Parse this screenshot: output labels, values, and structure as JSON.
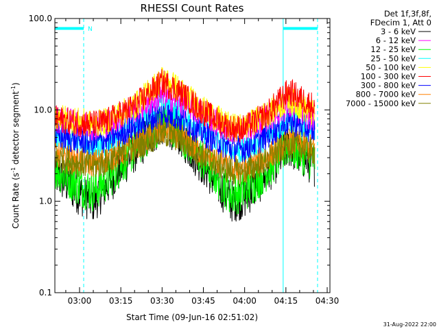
{
  "chart_data": {
    "type": "line",
    "title": "RHESSI Count Rates",
    "xlabel": "Start Time (09-Jun-16 02:51:02)",
    "ylabel_main": "Count Rate (s",
    "ylabel_exp1": "-1",
    "ylabel_mid": " detector segment",
    "ylabel_exp2": "-1",
    "ylabel_end": ")",
    "y_scale": "log",
    "ylim": [
      0.1,
      100.0
    ],
    "yticks": [
      {
        "value": 0.1,
        "label": "0.1"
      },
      {
        "value": 1.0,
        "label": "1.0"
      },
      {
        "value": 10.0,
        "label": "10.0"
      },
      {
        "value": 100.0,
        "label": "100.0"
      }
    ],
    "xlim": [
      "02:51:02",
      "04:31:00"
    ],
    "xticks": [
      {
        "time": "03:00",
        "label": "03:00"
      },
      {
        "time": "03:15",
        "label": "03:15"
      },
      {
        "time": "03:30",
        "label": "03:30"
      },
      {
        "time": "03:45",
        "label": "03:45"
      },
      {
        "time": "04:00",
        "label": "04:00"
      },
      {
        "time": "04:15",
        "label": "04:15"
      },
      {
        "time": "04:30",
        "label": "04:30"
      }
    ],
    "legend_header": [
      "Det 1f,3f,8f,",
      "FDecim 1, Att 0"
    ],
    "legend_placement": "right",
    "series": [
      {
        "name": "3 - 6 keV",
        "color": "#000000",
        "values": [
          [
            "02:51",
            2.0
          ],
          [
            "03:00",
            1.2
          ],
          [
            "03:05",
            1.0
          ],
          [
            "03:10",
            1.5
          ],
          [
            "03:20",
            3.5
          ],
          [
            "03:30",
            7.0
          ],
          [
            "03:35",
            6.0
          ],
          [
            "03:45",
            2.5
          ],
          [
            "03:55",
            1.0
          ],
          [
            "04:00",
            1.1
          ],
          [
            "04:08",
            2.0
          ],
          [
            "04:16",
            4.0
          ],
          [
            "04:25",
            2.5
          ]
        ]
      },
      {
        "name": "6 - 12 keV",
        "color": "#ff00ff",
        "values": [
          [
            "02:51",
            8.0
          ],
          [
            "03:00",
            7.0
          ],
          [
            "03:05",
            6.5
          ],
          [
            "03:10",
            7.0
          ],
          [
            "03:20",
            10.0
          ],
          [
            "03:30",
            14.0
          ],
          [
            "03:35",
            13.0
          ],
          [
            "03:45",
            9.0
          ],
          [
            "03:55",
            6.0
          ],
          [
            "04:00",
            6.0
          ],
          [
            "04:08",
            8.0
          ],
          [
            "04:16",
            11.0
          ],
          [
            "04:25",
            8.0
          ]
        ]
      },
      {
        "name": "12 - 25 keV",
        "color": "#00ff00",
        "values": [
          [
            "02:51",
            2.3
          ],
          [
            "03:00",
            1.5
          ],
          [
            "03:05",
            1.3
          ],
          [
            "03:10",
            1.7
          ],
          [
            "03:20",
            3.8
          ],
          [
            "03:30",
            7.5
          ],
          [
            "03:35",
            6.5
          ],
          [
            "03:45",
            2.8
          ],
          [
            "03:55",
            1.2
          ],
          [
            "04:00",
            1.3
          ],
          [
            "04:08",
            2.2
          ],
          [
            "04:16",
            4.2
          ],
          [
            "04:25",
            2.8
          ]
        ]
      },
      {
        "name": "25 - 50 keV",
        "color": "#00ffff",
        "values": [
          [
            "02:51",
            5.0
          ],
          [
            "03:00",
            4.0
          ],
          [
            "03:05",
            3.8
          ],
          [
            "03:10",
            4.2
          ],
          [
            "03:20",
            7.0
          ],
          [
            "03:30",
            12.0
          ],
          [
            "03:35",
            10.0
          ],
          [
            "03:45",
            6.0
          ],
          [
            "03:55",
            3.5
          ],
          [
            "04:00",
            3.5
          ],
          [
            "04:08",
            5.0
          ],
          [
            "04:16",
            8.0
          ],
          [
            "04:25",
            6.0
          ]
        ]
      },
      {
        "name": "50 - 100 keV",
        "color": "#ffff00",
        "values": [
          [
            "02:51",
            8.5
          ],
          [
            "03:00",
            7.5
          ],
          [
            "03:05",
            7.0
          ],
          [
            "03:10",
            7.5
          ],
          [
            "03:20",
            11.0
          ],
          [
            "03:30",
            22.0
          ],
          [
            "03:35",
            18.0
          ],
          [
            "03:45",
            10.0
          ],
          [
            "03:55",
            6.5
          ],
          [
            "04:00",
            6.5
          ],
          [
            "04:08",
            9.0
          ],
          [
            "04:16",
            13.0
          ],
          [
            "04:25",
            9.0
          ]
        ]
      },
      {
        "name": "100 - 300 keV",
        "color": "#ff0000",
        "values": [
          [
            "02:51",
            8.0
          ],
          [
            "03:00",
            7.2
          ],
          [
            "03:05",
            7.0
          ],
          [
            "03:10",
            7.5
          ],
          [
            "03:20",
            11.0
          ],
          [
            "03:30",
            20.0
          ],
          [
            "03:35",
            17.0
          ],
          [
            "03:45",
            9.5
          ],
          [
            "03:55",
            6.3
          ],
          [
            "04:00",
            6.3
          ],
          [
            "04:08",
            9.0
          ],
          [
            "04:16",
            16.0
          ],
          [
            "04:25",
            11.0
          ]
        ]
      },
      {
        "name": "300 - 800 keV",
        "color": "#0000ff",
        "values": [
          [
            "02:51",
            5.2
          ],
          [
            "03:00",
            4.6
          ],
          [
            "03:05",
            4.4
          ],
          [
            "03:10",
            4.8
          ],
          [
            "03:20",
            6.5
          ],
          [
            "03:30",
            9.0
          ],
          [
            "03:35",
            8.5
          ],
          [
            "03:45",
            5.5
          ],
          [
            "03:55",
            3.8
          ],
          [
            "04:00",
            3.8
          ],
          [
            "04:08",
            5.2
          ],
          [
            "04:16",
            7.5
          ],
          [
            "04:25",
            6.0
          ]
        ]
      },
      {
        "name": "800 - 7000 keV",
        "color": "#ff8000",
        "values": [
          [
            "02:51",
            3.3
          ],
          [
            "03:00",
            2.8
          ],
          [
            "03:05",
            2.6
          ],
          [
            "03:10",
            2.9
          ],
          [
            "03:20",
            4.0
          ],
          [
            "03:30",
            6.0
          ],
          [
            "03:35",
            5.5
          ],
          [
            "03:45",
            3.3
          ],
          [
            "03:55",
            2.3
          ],
          [
            "04:00",
            2.3
          ],
          [
            "04:08",
            3.0
          ],
          [
            "04:16",
            4.5
          ],
          [
            "04:25",
            3.8
          ]
        ]
      },
      {
        "name": "7000 - 15000 keV",
        "color": "#808000",
        "values": [
          [
            "02:51",
            3.0
          ],
          [
            "03:00",
            2.6
          ],
          [
            "03:05",
            2.4
          ],
          [
            "03:10",
            2.7
          ],
          [
            "03:20",
            3.8
          ],
          [
            "03:30",
            5.5
          ],
          [
            "03:35",
            5.0
          ],
          [
            "03:45",
            3.1
          ],
          [
            "03:55",
            2.1
          ],
          [
            "04:00",
            2.1
          ],
          [
            "04:08",
            2.8
          ],
          [
            "04:16",
            4.2
          ],
          [
            "04:25",
            3.5
          ]
        ]
      }
    ],
    "night_intervals": [
      {
        "start": "02:51:02",
        "end": "03:01:30",
        "label": "N"
      },
      {
        "start": "04:14:00",
        "end": "04:26:30",
        "label": ""
      }
    ],
    "night_color": "#00ffff",
    "footer_date": "31-Aug-2022 22:00"
  }
}
